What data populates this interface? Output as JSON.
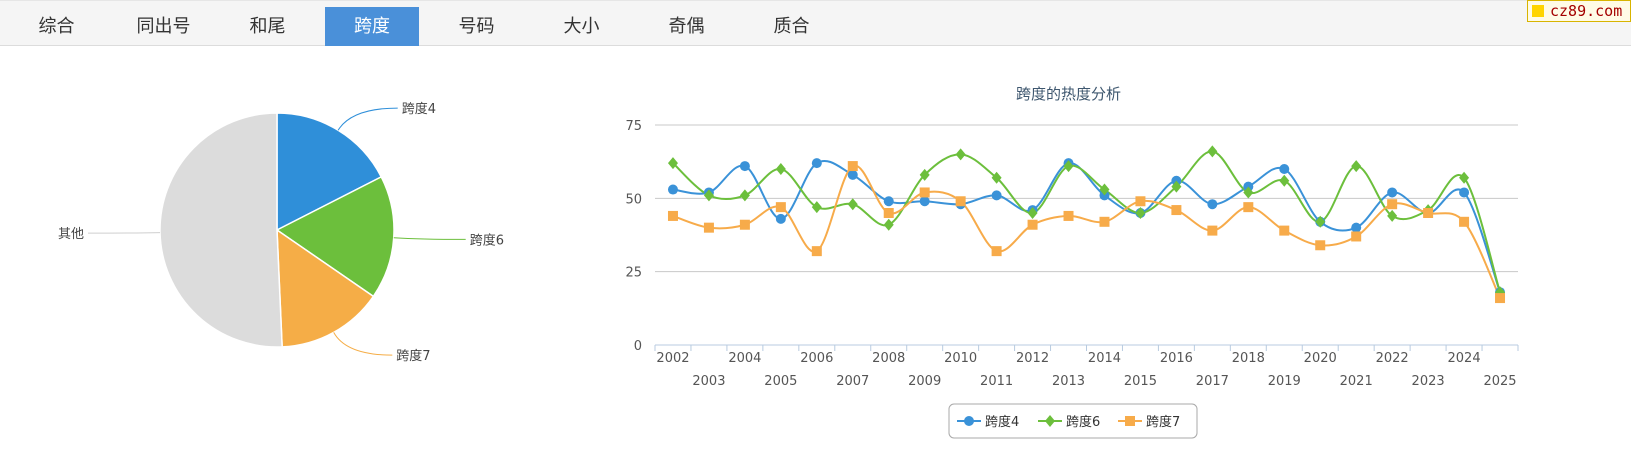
{
  "tabs": [
    {
      "label": "综合",
      "active": false
    },
    {
      "label": "同出号",
      "active": false
    },
    {
      "label": "和尾",
      "active": false
    },
    {
      "label": "跨度",
      "active": true
    },
    {
      "label": "号码",
      "active": false
    },
    {
      "label": "大小",
      "active": false
    },
    {
      "label": "奇偶",
      "active": false
    },
    {
      "label": "质合",
      "active": false
    }
  ],
  "site_badge": "cz89.com",
  "colors": {
    "blue": "#3a92d8",
    "green": "#6cbf3c",
    "orange": "#f7ab4a",
    "gray": "#dcdcdc",
    "accent": "#4a90d9"
  },
  "chart_data": [
    {
      "type": "pie",
      "slices": [
        {
          "label": "跨度4",
          "value": 0.175,
          "color": "#2f8fd9"
        },
        {
          "label": "跨度6",
          "value": 0.171,
          "color": "#6cbf3c"
        },
        {
          "label": "跨度7",
          "value": 0.147,
          "color": "#f5ad47"
        },
        {
          "label": "其他",
          "value": 0.507,
          "color": "#dcdcdc"
        }
      ]
    },
    {
      "type": "line",
      "title": "跨度的热度分析",
      "x": [
        "2002",
        "2003",
        "2004",
        "2005",
        "2006",
        "2007",
        "2008",
        "2009",
        "2010",
        "2011",
        "2012",
        "2013",
        "2014",
        "2015",
        "2016",
        "2017",
        "2018",
        "2019",
        "2020",
        "2021",
        "2022",
        "2023",
        "2024",
        "2025"
      ],
      "ylim": [
        0,
        75
      ],
      "yticks": [
        0,
        25,
        50,
        75
      ],
      "grid": true,
      "legend": "bottom-center",
      "series": [
        {
          "name": "跨度4",
          "marker": "circle",
          "color": "#3a92d8",
          "values": [
            53,
            52,
            61,
            43,
            62,
            58,
            49,
            49,
            48,
            51,
            46,
            62,
            51,
            45,
            56,
            48,
            54,
            60,
            42,
            40,
            52,
            45,
            52,
            18
          ]
        },
        {
          "name": "跨度6",
          "marker": "diamond",
          "color": "#6cbf3c",
          "values": [
            62,
            51,
            51,
            60,
            47,
            48,
            41,
            58,
            65,
            57,
            45,
            61,
            53,
            45,
            54,
            66,
            52,
            56,
            42,
            61,
            44,
            46,
            57,
            18
          ]
        },
        {
          "name": "跨度7",
          "marker": "square",
          "color": "#f7ab4a",
          "values": [
            44,
            40,
            41,
            47,
            32,
            61,
            45,
            52,
            49,
            32,
            41,
            44,
            42,
            49,
            46,
            39,
            47,
            39,
            34,
            37,
            48,
            45,
            42,
            16
          ]
        }
      ]
    }
  ]
}
